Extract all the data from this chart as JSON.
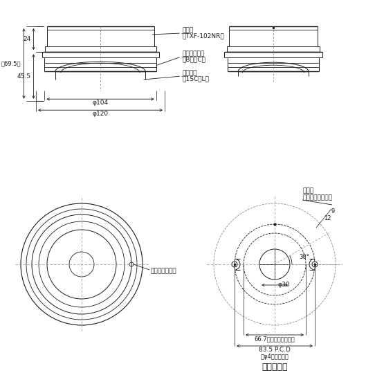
{
  "bg_color": "#ffffff",
  "line_color": "#1a1a1a",
  "dim_color": "#1a1a1a",
  "label_transmitter_1": "送信機",
  "label_transmitter_2": "（TXF-102NR）",
  "label_sensor_base_1": "感知器ベース",
  "label_sensor_base_2": "（B２－C）",
  "label_heat_sensor_1": "熱感知器",
  "label_heat_sensor_2": "（1SC－L）",
  "label_lock_screw": "ロックネジ用穴",
  "label_wire_entry_1": "入線口",
  "label_wire_entry_2": "（ノックアウト）",
  "dim_24": "24",
  "dim_69_5": "（69.5）",
  "dim_45_5": "45.5",
  "dim_phi104": "φ104",
  "dim_phi120": "φ120",
  "dim_phi30": "φ30",
  "dim_66_7": "66.7（ノックアウト）",
  "dim_83_5": "83.5 P.C.D",
  "dim_phi4": "（φ4ネジ対応）",
  "dim_9": "9",
  "dim_12": "12",
  "dim_30deg": "30°",
  "title_text": "取付参考図"
}
